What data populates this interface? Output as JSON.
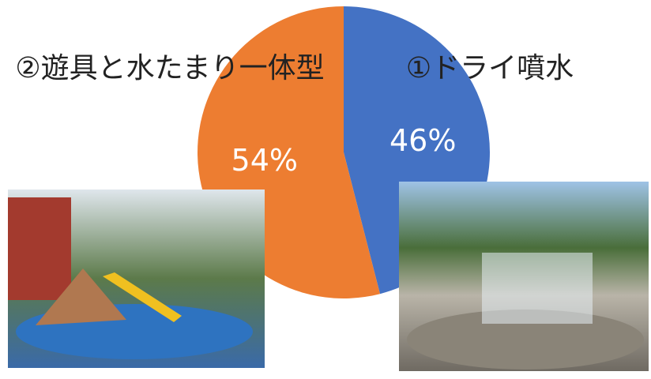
{
  "chart_data": {
    "type": "pie",
    "categories": [
      "①ドライ噴水",
      "②遊具と水たまり一体型"
    ],
    "values": [
      46,
      54
    ],
    "value_labels": [
      "46%",
      "54%"
    ],
    "colors": [
      "#4472c4",
      "#ed7d31"
    ]
  }
}
